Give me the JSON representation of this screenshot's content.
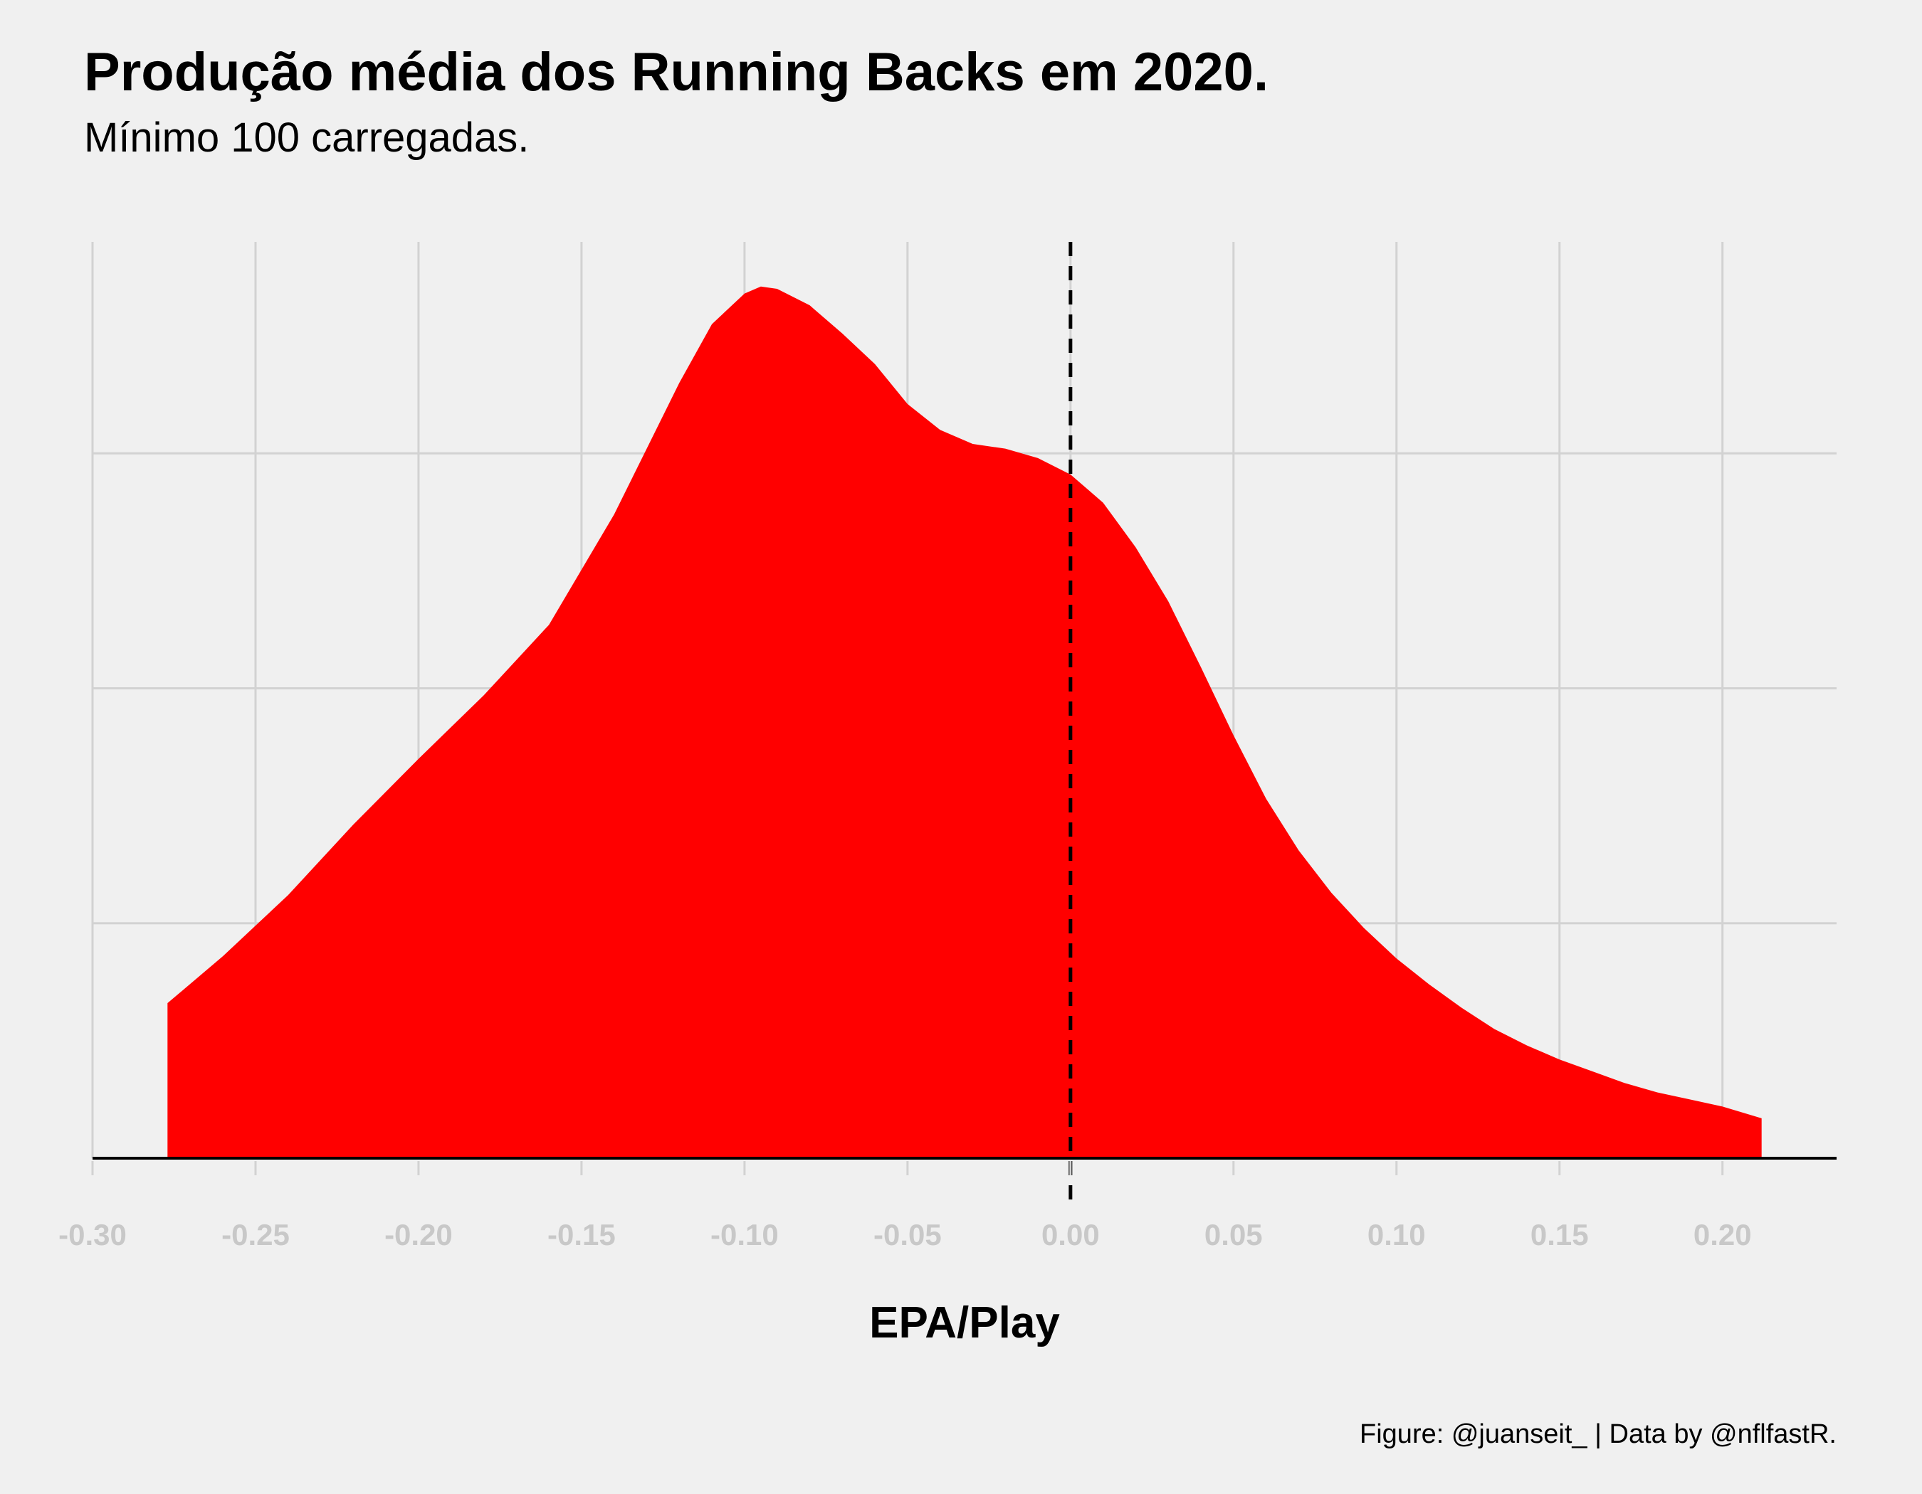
{
  "chart_data": {
    "type": "area",
    "title": "Produção média dos Running Backs em 2020.",
    "subtitle": "Mínimo 100 carregadas.",
    "xlabel": "EPA/Play",
    "ylabel": "",
    "caption": "Figure: @juanseit_ | Data by @nflfastR.",
    "xlim": [
      -0.3,
      0.235
    ],
    "ylim": [
      0,
      3.9
    ],
    "x_ticks": [
      -0.3,
      -0.25,
      -0.2,
      -0.15,
      -0.1,
      -0.05,
      0.0,
      0.05,
      0.1,
      0.15,
      0.2
    ],
    "x_tick_labels": [
      "-0.30",
      "-0.25",
      "-0.20",
      "-0.15",
      "-0.10",
      "-0.05",
      "0.00",
      "0.05",
      "0.10",
      "0.15",
      "0.20"
    ],
    "y_gridlines": [
      1,
      2,
      3
    ],
    "grid": true,
    "legend": "none",
    "reference_line": {
      "x": 0.0,
      "style": "dashed",
      "color": "#000000"
    },
    "fill_color": "#ff0000",
    "series": [
      {
        "x": [
          -0.277,
          -0.26,
          -0.24,
          -0.22,
          -0.2,
          -0.18,
          -0.16,
          -0.14,
          -0.12,
          -0.11,
          -0.1,
          -0.095,
          -0.09,
          -0.08,
          -0.07,
          -0.06,
          -0.05,
          -0.04,
          -0.03,
          -0.02,
          -0.01,
          0.0,
          0.01,
          0.02,
          0.03,
          0.04,
          0.05,
          0.06,
          0.07,
          0.08,
          0.09,
          0.1,
          0.11,
          0.12,
          0.13,
          0.14,
          0.15,
          0.16,
          0.17,
          0.18,
          0.19,
          0.2,
          0.212
        ],
        "y": [
          0.66,
          0.86,
          1.12,
          1.42,
          1.7,
          1.97,
          2.27,
          2.74,
          3.3,
          3.55,
          3.68,
          3.71,
          3.7,
          3.63,
          3.51,
          3.38,
          3.21,
          3.1,
          3.04,
          3.02,
          2.98,
          2.91,
          2.79,
          2.6,
          2.37,
          2.09,
          1.8,
          1.53,
          1.31,
          1.13,
          0.98,
          0.85,
          0.74,
          0.64,
          0.55,
          0.48,
          0.42,
          0.37,
          0.32,
          0.28,
          0.25,
          0.22,
          0.17
        ]
      }
    ]
  }
}
